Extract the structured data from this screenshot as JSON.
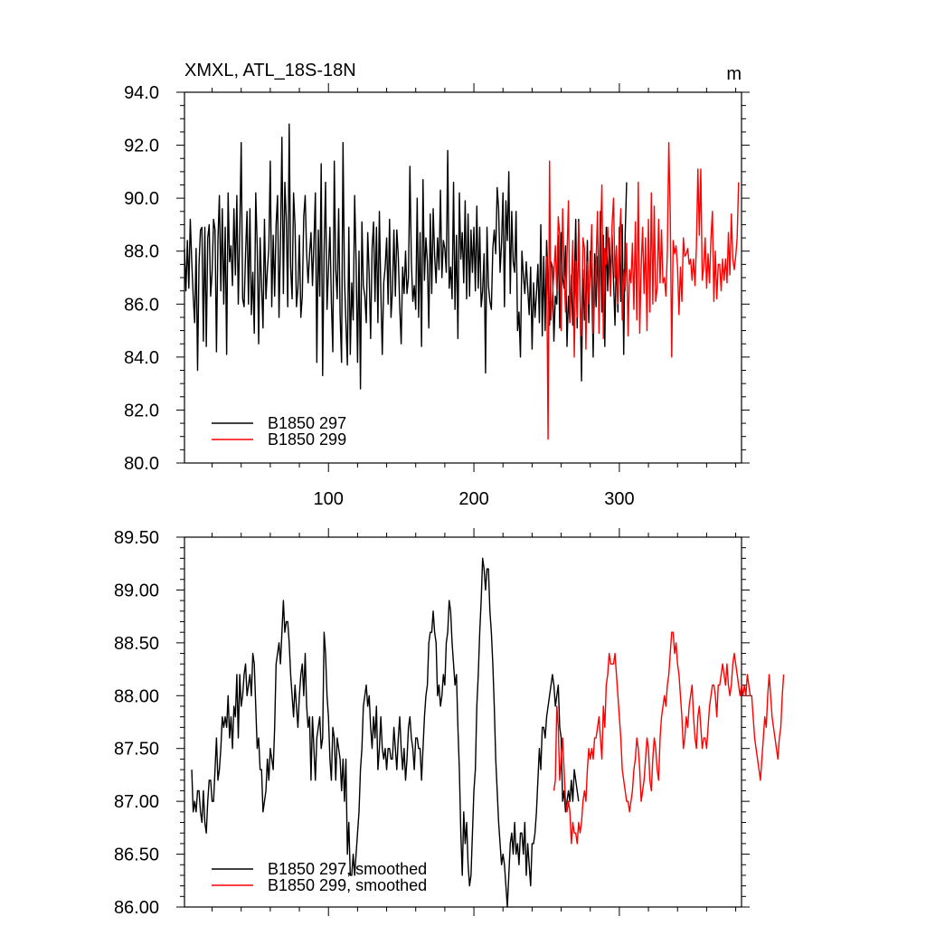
{
  "chart_data": [
    {
      "type": "line",
      "title": "XMXL, ATL_18S-18N",
      "units": "m",
      "xlim": [
        1,
        384
      ],
      "ylim": [
        80.0,
        94.0
      ],
      "yticks": [
        "80.0",
        "82.0",
        "84.0",
        "86.0",
        "88.0",
        "90.0",
        "92.0",
        "94.0"
      ],
      "xticks": [
        "100",
        "200",
        "300"
      ],
      "legend_position": "bottom-left",
      "series": [
        {
          "name": "B1850 297",
          "color": "#000000",
          "x_start": 1,
          "values": [
            88.1,
            86.5,
            88.4,
            86.6,
            89.2,
            87.6,
            86.3,
            85.3,
            88.1,
            83.5,
            87.5,
            88.8,
            88.9,
            84.6,
            88.9,
            84.4,
            88.5,
            89.0,
            86.3,
            87.2,
            89.2,
            88.8,
            84.2,
            88.4,
            90.1,
            86.5,
            89.6,
            86.0,
            88.9,
            84.1,
            90.2,
            87.6,
            88.2,
            86.7,
            89.6,
            87.1,
            90.1,
            86.0,
            88.7,
            92.1,
            86.2,
            85.9,
            87.9,
            89.5,
            86.0,
            89.6,
            85.6,
            87.2,
            84.9,
            90.2,
            88.2,
            84.5,
            88.5,
            86.7,
            85.1,
            89.2,
            86.2,
            87.3,
            88.1,
            91.4,
            85.9,
            88.6,
            86.3,
            89.0,
            90.1,
            85.5,
            88.3,
            92.3,
            86.4,
            90.6,
            89.2,
            85.9,
            92.8,
            87.4,
            86.2,
            90.2,
            89.0,
            85.9,
            86.6,
            88.6,
            85.5,
            86.3,
            89.3,
            90.1,
            87.9,
            86.8,
            87.9,
            88.7,
            86.7,
            88.3,
            90.2,
            83.8,
            88.8,
            86.3,
            91.3,
            83.3,
            88.0,
            90.6,
            85.8,
            87.3,
            88.9,
            86.1,
            84.2,
            91.4,
            87.3,
            86.2,
            89.6,
            85.6,
            83.8,
            92.1,
            87.0,
            85.3,
            83.7,
            88.9,
            84.1,
            86.8,
            85.4,
            90.1,
            87.6,
            83.8,
            88.0,
            82.8,
            89.1,
            86.7,
            86.3,
            85.3,
            88.7,
            87.1,
            84.7,
            88.1,
            89.1,
            86.1,
            88.9,
            85.3,
            89.5,
            86.5,
            84.1,
            86.8,
            87.4,
            88.5,
            86.0,
            89.2,
            85.5,
            86.5,
            88.8,
            86.3,
            88.8,
            87.8,
            85.9,
            84.5,
            87.4,
            86.4,
            88.0,
            86.4,
            87.0,
            91.2,
            87.6,
            86.1,
            86.7,
            85.8,
            90.0,
            85.5,
            88.7,
            84.4,
            90.7,
            86.9,
            88.5,
            87.6,
            85.1,
            89.4,
            86.4,
            89.6,
            87.8,
            86.8,
            88.5,
            87.3,
            90.3,
            87.0,
            88.4,
            88.1,
            87.2,
            91.8,
            86.6,
            87.4,
            86.2,
            90.6,
            85.8,
            88.6,
            84.7,
            90.2,
            87.7,
            88.7,
            86.8,
            89.9,
            86.2,
            89.4,
            86.3,
            88.8,
            87.2,
            88.9,
            86.5,
            89.7,
            86.6,
            88.9,
            85.9,
            86.5,
            87.9,
            83.4,
            88.9,
            86.7,
            86.1,
            85.8,
            88.1,
            88.8,
            87.9,
            90.4,
            89.6,
            87.2,
            88.3,
            90.2,
            85.9,
            89.9,
            88.4,
            91.0,
            86.4,
            89.5,
            87.6,
            87.2,
            89.5,
            85.0,
            85.7,
            84.0,
            88.0,
            87.1,
            86.4,
            87.6,
            86.6,
            85.6,
            87.4,
            84.3,
            86.8,
            85.5,
            86.4,
            87.5,
            85.3,
            89.0,
            84.8,
            87.8,
            85.0,
            88.4,
            86.8,
            85.2,
            87.6,
            87.4,
            84.6,
            86.3,
            86.0,
            88.6,
            85.1,
            88.7,
            87.0,
            86.6,
            88.2,
            84.4,
            86.3,
            85.3,
            87.1,
            85.2,
            86.6,
            89.2,
            85.1,
            89.2,
            86.4,
            83.1,
            87.3,
            85.4,
            85.8,
            88.4,
            85.3,
            88.0,
            86.9,
            84.0,
            87.9,
            85.9,
            87.8,
            86.5,
            89.5,
            85.7,
            88.6,
            84.4,
            88.9,
            86.5,
            88.5,
            86.9,
            88.6,
            86.9,
            85.2,
            87.9,
            85.7,
            88.9,
            86.1,
            89.0,
            84.1,
            88.6,
            90.6
          ]
        },
        {
          "name": "B1850 299",
          "color": "#ff0000",
          "x_start": 250,
          "values": [
            87.8,
            80.9,
            91.4,
            85.4,
            86.3,
            87.2,
            88.2,
            86.5,
            89.3,
            88.6,
            85.0,
            89.6,
            87.2,
            85.7,
            87.8,
            89.9,
            85.3,
            86.6,
            88.4,
            84.0,
            87.6,
            85.5,
            89.1,
            86.2,
            84.8,
            88.5,
            88.1,
            84.3,
            87.6,
            86.0,
            87.3,
            89.0,
            84.9,
            86.3,
            87.6,
            89.5,
            84.9,
            88.4,
            90.5,
            84.7,
            88.1,
            87.5,
            88.9,
            87.4,
            86.3,
            89.0,
            90.0,
            87.0,
            88.2,
            86.0,
            88.3,
            89.6,
            85.4,
            87.3,
            86.5,
            88.3,
            84.8,
            87.3,
            86.8,
            88.3,
            85.8,
            89.1,
            85.4,
            90.6,
            84.9,
            87.4,
            88.9,
            86.4,
            88.5,
            85.0,
            89.2,
            85.7,
            90.2,
            86.0,
            89.7,
            86.1,
            86.6,
            89.2,
            86.8,
            88.8,
            86.8,
            87.0,
            86.3,
            88.0,
            92.1,
            89.4,
            84.0,
            88.4,
            87.9,
            88.2,
            87.4,
            85.6,
            87.4,
            86.1,
            88.5,
            87.8,
            87.9,
            88.1,
            87.5,
            87.7,
            86.9,
            87.7,
            86.7,
            88.2,
            91.1,
            88.6,
            91.1,
            86.9,
            87.4,
            88.5,
            86.6,
            87.9,
            86.8,
            88.5,
            89.5,
            86.1,
            88.0,
            86.2,
            87.5,
            87.5,
            86.5,
            87.7,
            86.9,
            87.7,
            86.8,
            88.7,
            87.1,
            89.4,
            87.7,
            87.3,
            87.8,
            88.5,
            90.6
          ]
        }
      ]
    },
    {
      "type": "line",
      "title": "",
      "xlim": [
        1,
        384
      ],
      "ylim": [
        86.0,
        89.5
      ],
      "yticks": [
        "86.00",
        "86.50",
        "87.00",
        "87.50",
        "88.00",
        "88.50",
        "89.00",
        "89.50"
      ],
      "legend_position": "bottom-left",
      "series": [
        {
          "name": "B1850 297, smoothed",
          "color": "#000000",
          "x_start": 6,
          "values": [
            87.3,
            86.9,
            87.0,
            86.9,
            87.1,
            87.1,
            86.9,
            86.8,
            87.1,
            86.8,
            86.7,
            87.0,
            87.2,
            87.2,
            87.0,
            87.0,
            87.3,
            87.6,
            87.2,
            87.3,
            87.5,
            87.8,
            87.7,
            87.8,
            87.7,
            88.0,
            87.6,
            87.8,
            87.5,
            87.9,
            87.8,
            88.2,
            87.6,
            88.2,
            87.9,
            88.0,
            88.2,
            88.3,
            88.0,
            88.1,
            88.2,
            88.0,
            88.4,
            88.3,
            87.9,
            87.5,
            87.6,
            87.3,
            87.3,
            86.9,
            87.0,
            87.1,
            87.4,
            87.2,
            87.5,
            87.4,
            87.3,
            87.7,
            88.3,
            88.4,
            88.5,
            88.3,
            88.6,
            88.9,
            88.6,
            88.7,
            88.7,
            88.5,
            88.2,
            88.0,
            87.8,
            88.1,
            87.9,
            87.7,
            88.0,
            88.2,
            88.3,
            88.0,
            88.4,
            87.9,
            87.7,
            87.8,
            87.2,
            87.8,
            87.5,
            87.2,
            87.6,
            87.7,
            87.8,
            87.5,
            87.6,
            88.6,
            88.4,
            88.0,
            87.8,
            87.4,
            87.2,
            87.7,
            87.6,
            87.2,
            87.6,
            87.5,
            87.4,
            87.1,
            87.4,
            87.0,
            87.4,
            86.5,
            86.8,
            86.3,
            86.3,
            86.5,
            86.3,
            86.5,
            86.7,
            86.9,
            87.3,
            87.5,
            87.9,
            88.0,
            88.1,
            87.9,
            88.0,
            87.7,
            87.5,
            87.8,
            87.6,
            87.9,
            87.3,
            87.5,
            87.8,
            87.5,
            87.4,
            87.5,
            87.3,
            87.5,
            87.5,
            87.4,
            87.4,
            87.7,
            87.5,
            87.3,
            87.6,
            87.8,
            87.5,
            87.3,
            87.5,
            87.2,
            87.4,
            87.7,
            87.8,
            87.6,
            87.5,
            87.3,
            87.6,
            87.6,
            87.5,
            87.5,
            87.2,
            87.5,
            87.8,
            88.0,
            88.1,
            88.5,
            88.6,
            88.6,
            88.8,
            88.6,
            88.5,
            88.0,
            88.1,
            87.9,
            88.0,
            88.2,
            88.1,
            88.5,
            88.6,
            88.9,
            88.8,
            88.5,
            88.3,
            88.1,
            88.2,
            87.7,
            87.3,
            86.7,
            86.3,
            86.9,
            86.6,
            86.8,
            86.4,
            86.2,
            86.3,
            86.7,
            87.1,
            87.3,
            87.9,
            88.2,
            88.6,
            88.9,
            89.3,
            89.2,
            89.0,
            89.2,
            89.2,
            88.8,
            88.6,
            88.3,
            87.9,
            87.4,
            87.1,
            86.8,
            86.6,
            86.4,
            86.5,
            86.4,
            86.2,
            86.0,
            86.3,
            86.6,
            86.7,
            86.5,
            86.8,
            86.5,
            86.6,
            86.4,
            86.7,
            86.7,
            86.5,
            86.8,
            86.3,
            86.6,
            86.4,
            86.2,
            86.6,
            86.6,
            86.7,
            86.9,
            87.2,
            87.5,
            87.3,
            87.7,
            87.7,
            87.6,
            87.8,
            87.9,
            88.0,
            88.1,
            88.2,
            88.1,
            87.9,
            88.0,
            88.1,
            87.7,
            87.6,
            87.0,
            87.1,
            86.9,
            87.0,
            87.1,
            87.0,
            87.2,
            87.0,
            87.3,
            87.2,
            87.1,
            87.0
          ]
        },
        {
          "name": "B1850 299, smoothed",
          "color": "#ff0000",
          "x_start": 255,
          "values": [
            87.1,
            87.2,
            87.9,
            87.7,
            87.2,
            87.4,
            87.6,
            87.3,
            87.0,
            86.9,
            87.0,
            86.9,
            86.6,
            86.8,
            86.7,
            86.7,
            86.6,
            86.8,
            86.7,
            86.8,
            87.0,
            87.1,
            87.0,
            87.3,
            87.5,
            87.4,
            87.5,
            87.4,
            87.6,
            87.6,
            87.7,
            87.8,
            87.6,
            87.4,
            87.9,
            87.7,
            88.1,
            88.2,
            88.4,
            88.3,
            88.3,
            88.3,
            88.4,
            88.2,
            88.0,
            87.8,
            87.6,
            87.3,
            87.2,
            87.1,
            87.0,
            87.0,
            86.9,
            87.0,
            87.1,
            87.3,
            87.4,
            87.6,
            87.5,
            87.3,
            87.0,
            87.1,
            87.2,
            87.4,
            87.6,
            87.5,
            87.2,
            87.1,
            87.4,
            87.6,
            87.5,
            87.3,
            87.2,
            87.6,
            87.8,
            87.9,
            88.0,
            87.9,
            88.1,
            88.2,
            88.4,
            88.6,
            88.6,
            88.4,
            88.5,
            88.3,
            88.2,
            88.0,
            87.8,
            87.5,
            87.6,
            87.8,
            87.7,
            87.9,
            88.0,
            88.1,
            87.8,
            87.6,
            87.5,
            87.8,
            87.9,
            87.7,
            87.5,
            87.6,
            87.6,
            87.5,
            87.7,
            87.9,
            88.0,
            88.1,
            88.1,
            88.0,
            87.8,
            88.1,
            88.1,
            88.2,
            88.3,
            88.2,
            88.1,
            88.3,
            88.1,
            88.0,
            88.1,
            88.3,
            88.4,
            88.3,
            88.2,
            88.1,
            88.0,
            88.1,
            88.0,
            88.1,
            88.0,
            88.2,
            88.1,
            88.0,
            88.0,
            87.8,
            87.6,
            87.5,
            87.4,
            87.3,
            87.2,
            87.4,
            87.6,
            87.8,
            87.7,
            88.0,
            88.2,
            88.0,
            87.8,
            87.7,
            87.6,
            87.5,
            87.4,
            87.6,
            87.7,
            88.0,
            88.2
          ]
        }
      ]
    }
  ]
}
